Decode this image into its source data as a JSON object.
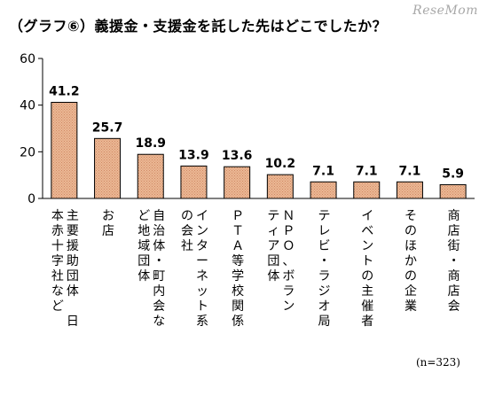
{
  "header": {
    "title": "（グラフ⑥）義援金・支援金を託した先はどこでしたか？",
    "logo": "ReseMom"
  },
  "footer": {
    "note": "(n=323)"
  },
  "colors": {
    "bar_fill": "#ebb795",
    "bar_hatch": "#d08a63",
    "bar_stroke": "#000000",
    "axis": "#000000"
  },
  "chart_data": {
    "type": "bar",
    "title": "（グラフ⑥）義援金・支援金を託した先はどこでしたか？",
    "xlabel": "",
    "ylabel": "",
    "ylim": [
      0,
      60
    ],
    "yticks": [
      0,
      20,
      40,
      60
    ],
    "grid": false,
    "legend": "none",
    "categories": [
      "主要援助団体　日本赤十字社など",
      "お店",
      "自治体・町内会など地域団体",
      "インターネット系の会社",
      "ＰＴＡ等学校関係",
      "ＮＰＯ、ボランティア団体",
      "テレビ・ラジオ局",
      "イベントの主催者",
      "そのほかの企業",
      "商店街・商店会"
    ],
    "category_lines": [
      [
        "主要援助団体　日",
        "本赤十字社など"
      ],
      [
        "お店"
      ],
      [
        "自治体・町内会な",
        "ど地域団体"
      ],
      [
        "インターネット系",
        "の会社"
      ],
      [
        "ＰＴＡ等学校関係"
      ],
      [
        "ＮＰＯ、ボラン",
        "ティア団体"
      ],
      [
        "テレビ・ラジオ局"
      ],
      [
        "イベントの主催者"
      ],
      [
        "そのほかの企業"
      ],
      [
        "商店街・商店会"
      ]
    ],
    "values": [
      41.2,
      25.7,
      18.9,
      13.9,
      13.6,
      10.2,
      7.1,
      7.1,
      7.1,
      5.9
    ],
    "value_labels": [
      "41.2",
      "25.7",
      "18.9",
      "13.9",
      "13.6",
      "10.2",
      "7.1",
      "7.1",
      "7.1",
      "5.9"
    ]
  }
}
